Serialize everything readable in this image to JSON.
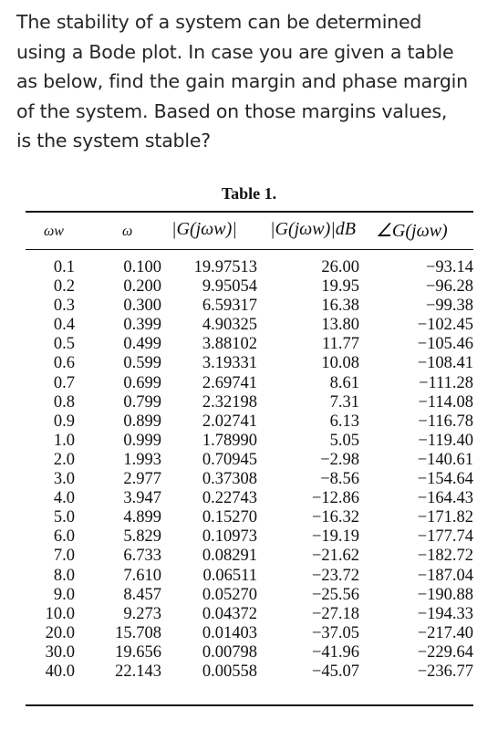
{
  "question": {
    "lines": [
      "The stability of a system can be determined",
      "using a Bode plot. In case you are given a table",
      "as below,  find the gain margin and phase margin",
      "of the system.  Based on those margins values,",
      "is the system stable?"
    ]
  },
  "table": {
    "title": "Table 1.",
    "headers": {
      "omega_w": "ωw",
      "omega": "ω",
      "magnitude": "|G(jωw)|",
      "magnitude_db": "|G(jωw)|dB",
      "phase": "∠G(jωw)"
    },
    "rows": [
      [
        "0.1",
        "0.100",
        "19.97513",
        "26.00",
        "−93.14"
      ],
      [
        "0.2",
        "0.200",
        "9.95054",
        "19.95",
        "−96.28"
      ],
      [
        "0.3",
        "0.300",
        "6.59317",
        "16.38",
        "−99.38"
      ],
      [
        "0.4",
        "0.399",
        "4.90325",
        "13.80",
        "−102.45"
      ],
      [
        "0.5",
        "0.499",
        "3.88102",
        "11.77",
        "−105.46"
      ],
      [
        "0.6",
        "0.599",
        "3.19331",
        "10.08",
        "−108.41"
      ],
      [
        "0.7",
        "0.699",
        "2.69741",
        "8.61",
        "−111.28"
      ],
      [
        "0.8",
        "0.799",
        "2.32198",
        "7.31",
        "−114.08"
      ],
      [
        "0.9",
        "0.899",
        "2.02741",
        "6.13",
        "−116.78"
      ],
      [
        "1.0",
        "0.999",
        "1.78990",
        "5.05",
        "−119.40"
      ],
      [
        "2.0",
        "1.993",
        "0.70945",
        "−2.98",
        "−140.61"
      ],
      [
        "3.0",
        "2.977",
        "0.37308",
        "−8.56",
        "−154.64"
      ],
      [
        "4.0",
        "3.947",
        "0.22743",
        "−12.86",
        "−164.43"
      ],
      [
        "5.0",
        "4.899",
        "0.15270",
        "−16.32",
        "−171.82"
      ],
      [
        "6.0",
        "5.829",
        "0.10973",
        "−19.19",
        "−177.74"
      ],
      [
        "7.0",
        "6.733",
        "0.08291",
        "−21.62",
        "−182.72"
      ],
      [
        "8.0",
        "7.610",
        "0.06511",
        "−23.72",
        "−187.04"
      ],
      [
        "9.0",
        "8.457",
        "0.05270",
        "−25.56",
        "−190.88"
      ],
      [
        "10.0",
        "9.273",
        "0.04372",
        "−27.18",
        "−194.33"
      ],
      [
        "20.0",
        "15.708",
        "0.01403",
        "−37.05",
        "−217.40"
      ],
      [
        "30.0",
        "19.656",
        "0.00798",
        "−41.96",
        "−229.64"
      ],
      [
        "40.0",
        "22.143",
        "0.00558",
        "−45.07",
        "−236.77"
      ]
    ]
  }
}
